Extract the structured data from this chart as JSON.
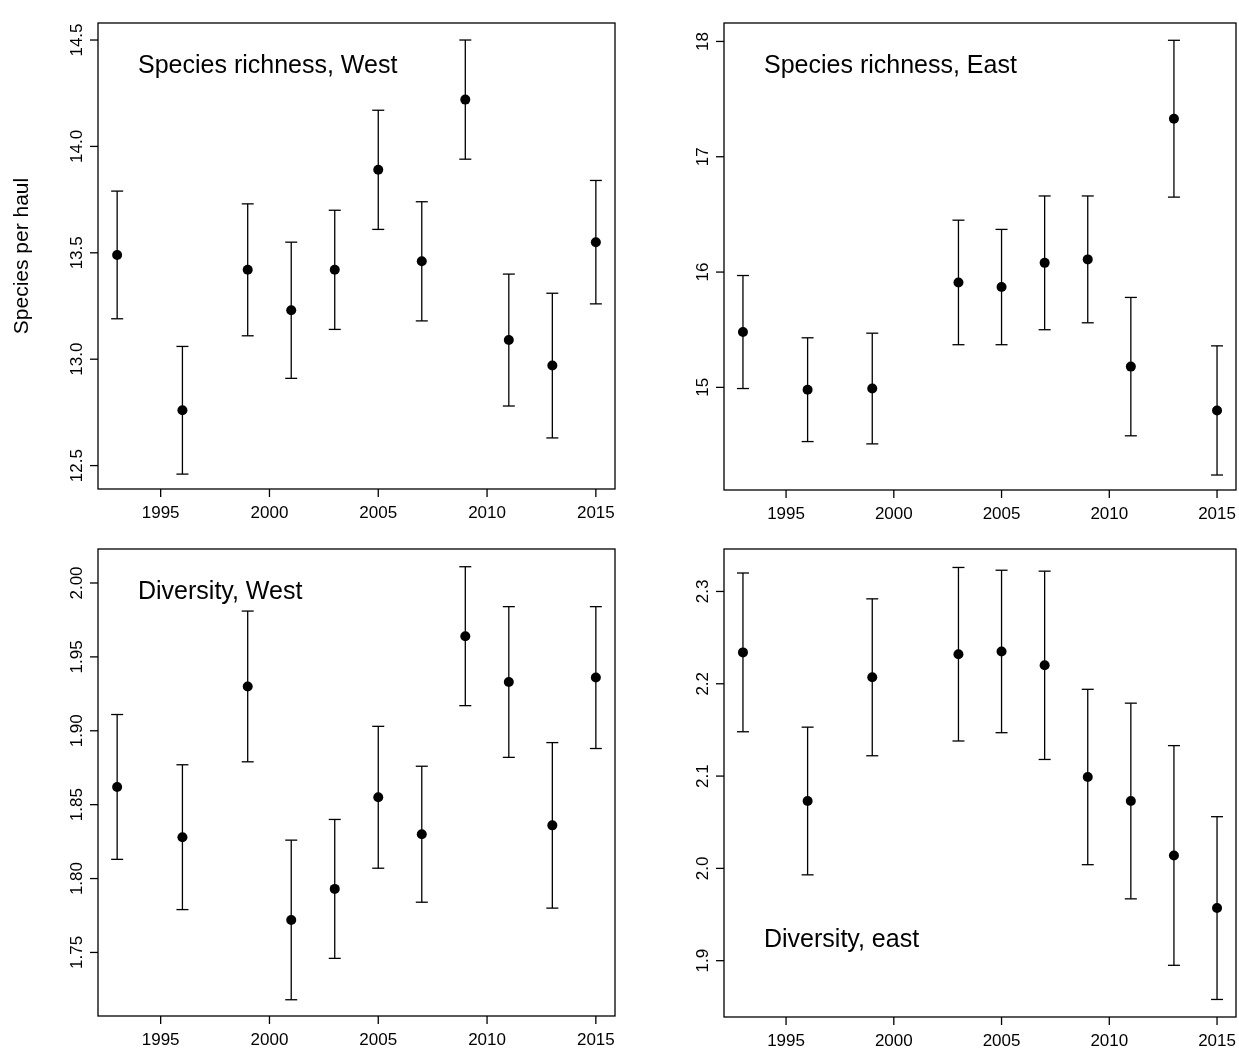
{
  "chart_data": [
    {
      "type": "scatter",
      "title": "Species richness, West",
      "ylabel": "Species per haul",
      "color": "#000000",
      "marker": "circle",
      "x": [
        1993,
        1996,
        1999,
        2001,
        2003,
        2005,
        2007,
        2009,
        2011,
        2013,
        2015
      ],
      "values": [
        13.49,
        12.76,
        13.42,
        13.23,
        13.42,
        13.89,
        13.46,
        14.22,
        13.09,
        12.97,
        13.55
      ],
      "errors": [
        0.3,
        0.3,
        0.31,
        0.32,
        0.28,
        0.28,
        0.28,
        0.28,
        0.31,
        0.34,
        0.29
      ],
      "xlim": [
        1992.12,
        2015.88
      ],
      "xticks": [
        1995,
        2000,
        2005,
        2010,
        2015
      ],
      "ylim": [
        12.39,
        14.58
      ],
      "yticks": [
        12.5,
        {
          "value": 13,
          "label": "13.0"
        },
        13.5,
        {
          "value": 14,
          "label": "14.0"
        },
        14.5
      ]
    },
    {
      "type": "scatter",
      "title": "Species richness, East",
      "color": "#000000",
      "marker": "circle",
      "x": [
        1993,
        1996,
        1999,
        2003,
        2005,
        2007,
        2009,
        2011,
        2013,
        2015
      ],
      "values": [
        15.48,
        14.98,
        14.99,
        15.91,
        15.87,
        16.08,
        16.11,
        15.18,
        17.33,
        14.8
      ],
      "errors": [
        0.49,
        0.45,
        0.48,
        0.54,
        0.5,
        0.58,
        0.55,
        0.6,
        0.68,
        0.56
      ],
      "xlim": [
        1992.12,
        2015.88
      ],
      "xticks": [
        1995,
        2000,
        2005,
        2010,
        2015
      ],
      "ylim": [
        14.11,
        18.16
      ],
      "yticks": [
        15,
        16,
        17,
        18
      ]
    },
    {
      "type": "scatter",
      "title": "Diversity, West",
      "color": "#000000",
      "marker": "circle",
      "x": [
        1993,
        1996,
        1999,
        2001,
        2003,
        2005,
        2007,
        2009,
        2011,
        2013,
        2015
      ],
      "values": [
        1.862,
        1.828,
        1.93,
        1.772,
        1.793,
        1.855,
        1.83,
        1.964,
        1.933,
        1.836,
        1.936
      ],
      "errors": [
        0.049,
        0.049,
        0.051,
        0.054,
        0.047,
        0.048,
        0.046,
        0.047,
        0.051,
        0.056,
        0.048
      ],
      "xlim": [
        1992.12,
        2015.88
      ],
      "xticks": [
        1995,
        2000,
        2005,
        2010,
        2015
      ],
      "ylim": [
        1.707,
        2.023
      ],
      "yticks": [
        1.75,
        {
          "value": 1.8,
          "label": "1.80"
        },
        1.85,
        {
          "value": 1.9,
          "label": "1.90"
        },
        1.95,
        {
          "value": 2,
          "label": "2.00"
        }
      ]
    },
    {
      "type": "scatter",
      "title": "Diversity, east",
      "color": "#000000",
      "marker": "circle",
      "x": [
        1993,
        1996,
        1999,
        2003,
        2005,
        2007,
        2009,
        2011,
        2013,
        2015
      ],
      "values": [
        2.234,
        2.073,
        2.207,
        2.232,
        2.235,
        2.22,
        2.099,
        2.073,
        2.014,
        1.957
      ],
      "errors": [
        0.086,
        0.08,
        0.085,
        0.094,
        0.088,
        0.102,
        0.095,
        0.106,
        0.119,
        0.099
      ],
      "xlim": [
        1992.12,
        2015.88
      ],
      "xticks": [
        1995,
        2000,
        2005,
        2010,
        2015
      ],
      "ylim": [
        1.839,
        2.346
      ],
      "yticks": [
        1.9,
        {
          "value": 2,
          "label": "2.0"
        },
        2.1,
        2.2,
        2.3
      ]
    }
  ]
}
